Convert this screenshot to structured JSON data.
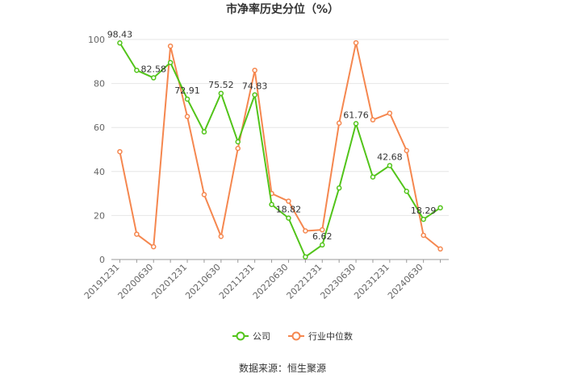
{
  "chart_data": {
    "type": "line",
    "title": "市净率历史分位（%）",
    "ylim": [
      0,
      100
    ],
    "y_ticks": [
      0,
      20,
      40,
      60,
      80,
      100
    ],
    "grid": "horizontal",
    "legend_position": "bottom",
    "x": [
      "20191231",
      "20200331",
      "20200630",
      "20200930",
      "20201231",
      "20210331",
      "20210630",
      "20210930",
      "20211231",
      "20220331",
      "20220630",
      "20220930",
      "20221231",
      "20230331",
      "20230630",
      "20230930",
      "20231231",
      "20240331",
      "20240630",
      "20240930"
    ],
    "x_tick_labels": [
      "20191231",
      "20200630",
      "20201231",
      "20210630",
      "20211231",
      "20220630",
      "20221231",
      "20230630",
      "20231231",
      "20240630"
    ],
    "series": [
      {
        "name": "公司",
        "color": "#52c41a",
        "values": [
          98.43,
          86.0,
          82.58,
          89.5,
          72.91,
          58.0,
          75.52,
          53.5,
          74.83,
          25.0,
          18.82,
          1.2,
          6.62,
          32.5,
          61.76,
          37.5,
          42.68,
          31.0,
          18.29,
          23.5
        ],
        "labels": [
          {
            "index": 0,
            "text": "98.43"
          },
          {
            "index": 2,
            "text": "82.58"
          },
          {
            "index": 4,
            "text": "72.91"
          },
          {
            "index": 6,
            "text": "75.52"
          },
          {
            "index": 8,
            "text": "74.83"
          },
          {
            "index": 10,
            "text": "18.82"
          },
          {
            "index": 12,
            "text": "6.62"
          },
          {
            "index": 14,
            "text": "61.76"
          },
          {
            "index": 16,
            "text": "42.68"
          },
          {
            "index": 18,
            "text": "18.29"
          }
        ]
      },
      {
        "name": "行业中位数",
        "color": "#f5874f",
        "values": [
          49.0,
          11.5,
          5.8,
          97.0,
          65.0,
          29.5,
          10.5,
          50.5,
          86.0,
          30.0,
          26.5,
          13.0,
          13.5,
          62.0,
          98.5,
          63.5,
          66.5,
          49.5,
          11.0,
          4.8
        ]
      }
    ],
    "source": "数据来源：恒生聚源"
  }
}
